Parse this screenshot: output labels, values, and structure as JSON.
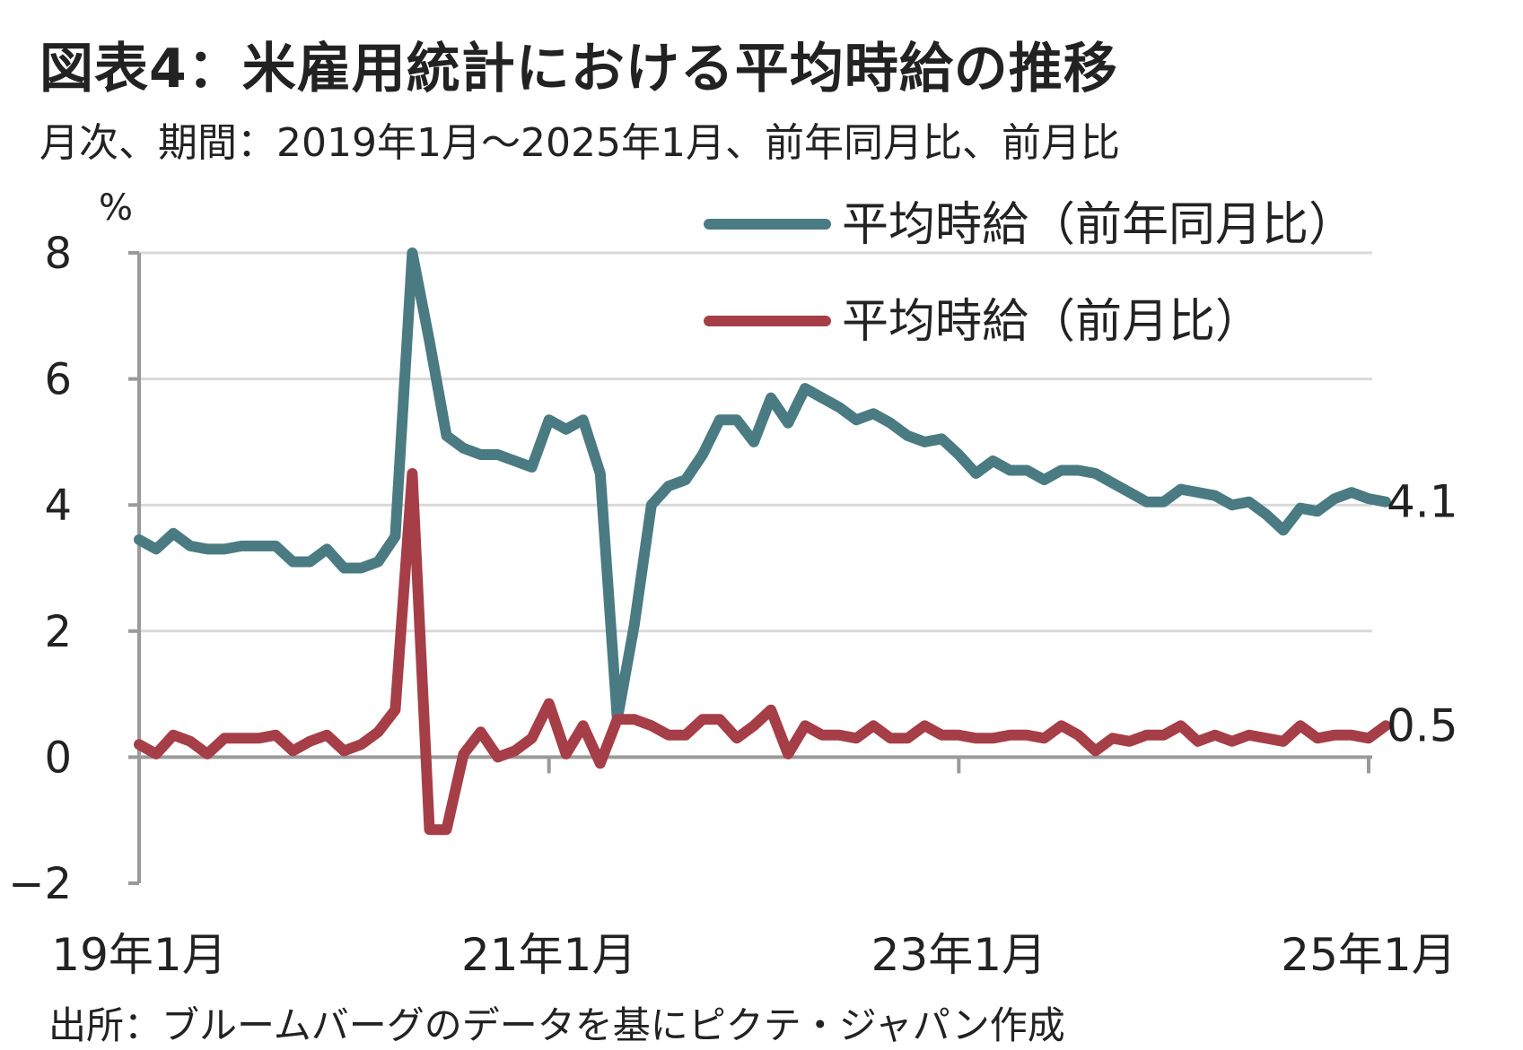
{
  "title": "図表4：米雇用統計における平均時給の推移",
  "subtitle": "月次、期間：2019年1月～2025年1月、前年同月比、前月比",
  "source": "出所：ブルームバーグのデータを基にピクテ・ジャパン作成",
  "chart_data": {
    "type": "line",
    "yunit": "%",
    "ylim": [
      -2,
      8
    ],
    "yticks": [
      "8",
      "6",
      "4",
      "2",
      "0",
      "-2"
    ],
    "xlabels": [
      "19年1月",
      "21年1月",
      "23年1月",
      "25年1月"
    ],
    "x_start": "2019-01",
    "x_end": "2025-01",
    "grid": true,
    "legend_position": "top-right",
    "series": [
      {
        "name": "平均時給（前年同月比）",
        "color": "#4a7b82",
        "end_label": "4.1",
        "values": [
          3.45,
          3.3,
          3.55,
          3.35,
          3.3,
          3.3,
          3.35,
          3.35,
          3.35,
          3.1,
          3.1,
          3.3,
          3.0,
          3.0,
          3.1,
          3.5,
          8.0,
          6.6,
          5.1,
          4.9,
          4.8,
          4.8,
          4.7,
          4.6,
          5.35,
          5.2,
          5.35,
          4.5,
          0.6,
          2.1,
          4.0,
          4.3,
          4.4,
          4.8,
          5.35,
          5.35,
          5.0,
          5.7,
          5.3,
          5.85,
          5.7,
          5.55,
          5.35,
          5.45,
          5.3,
          5.1,
          5.0,
          5.05,
          4.8,
          4.5,
          4.7,
          4.55,
          4.55,
          4.4,
          4.55,
          4.55,
          4.5,
          4.35,
          4.2,
          4.05,
          4.05,
          4.25,
          4.2,
          4.15,
          4.0,
          4.05,
          3.85,
          3.6,
          3.95,
          3.9,
          4.1,
          4.2,
          4.1,
          4.05
        ]
      },
      {
        "name": "平均時給（前月比）",
        "color": "#a63e48",
        "end_label": "0.5",
        "values": [
          0.2,
          0.05,
          0.35,
          0.25,
          0.05,
          0.3,
          0.3,
          0.3,
          0.35,
          0.1,
          0.25,
          0.35,
          0.1,
          0.2,
          0.4,
          0.75,
          4.5,
          -1.15,
          -1.15,
          0.05,
          0.4,
          0.0,
          0.1,
          0.3,
          0.85,
          0.05,
          0.5,
          -0.1,
          0.6,
          0.6,
          0.5,
          0.35,
          0.35,
          0.6,
          0.6,
          0.3,
          0.5,
          0.75,
          0.05,
          0.5,
          0.35,
          0.35,
          0.3,
          0.5,
          0.3,
          0.3,
          0.5,
          0.35,
          0.35,
          0.3,
          0.3,
          0.35,
          0.35,
          0.3,
          0.5,
          0.35,
          0.1,
          0.3,
          0.25,
          0.35,
          0.35,
          0.5,
          0.25,
          0.35,
          0.25,
          0.35,
          0.3,
          0.25,
          0.5,
          0.3,
          0.35,
          0.35,
          0.3,
          0.5
        ]
      }
    ]
  }
}
